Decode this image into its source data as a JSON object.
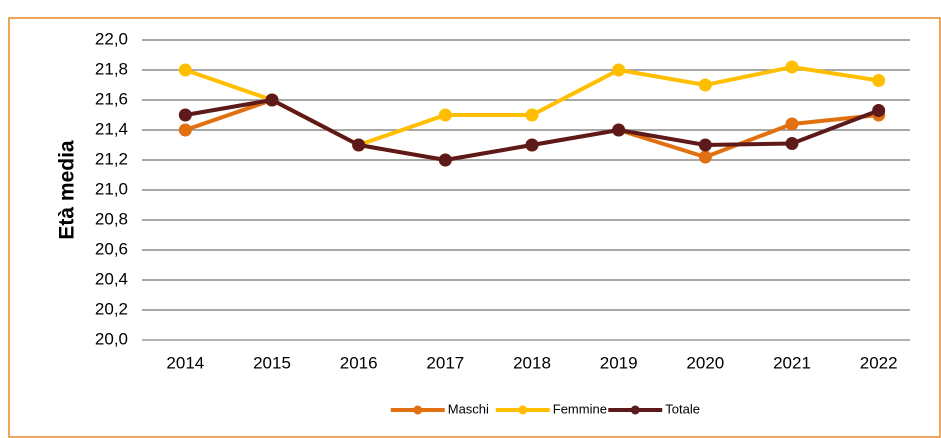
{
  "chart_data": {
    "type": "line",
    "y_label": "Età media",
    "categories": [
      "2014",
      "2015",
      "2016",
      "2017",
      "2018",
      "2019",
      "2020",
      "2021",
      "2022"
    ],
    "series": [
      {
        "name": "Maschi",
        "color": "#e07010",
        "values": [
          21.4,
          21.6,
          21.3,
          21.2,
          21.3,
          21.4,
          21.22,
          21.44,
          21.5
        ]
      },
      {
        "name": "Femmine",
        "color": "#ffbf00",
        "values": [
          21.8,
          21.6,
          21.3,
          21.5,
          21.5,
          21.8,
          21.7,
          21.82,
          21.73
        ]
      },
      {
        "name": "Totale",
        "color": "#5e1a1a",
        "values": [
          21.5,
          21.6,
          21.3,
          21.2,
          21.3,
          21.4,
          21.3,
          21.31,
          21.53
        ]
      }
    ],
    "ylim": [
      20.0,
      22.0
    ],
    "yticks": [
      {
        "value": 20.0,
        "label": "20,0"
      },
      {
        "value": 20.2,
        "label": "20,2"
      },
      {
        "value": 20.4,
        "label": "20,4"
      },
      {
        "value": 20.6,
        "label": "20,6"
      },
      {
        "value": 20.8,
        "label": "20,8"
      },
      {
        "value": 21.0,
        "label": "21,0"
      },
      {
        "value": 21.2,
        "label": "21,2"
      },
      {
        "value": 21.4,
        "label": "21,4"
      },
      {
        "value": 21.6,
        "label": "21,6"
      },
      {
        "value": 21.8,
        "label": "21,8"
      },
      {
        "value": 22.0,
        "label": "22,0"
      }
    ],
    "grid": true,
    "legend": "bottom"
  }
}
